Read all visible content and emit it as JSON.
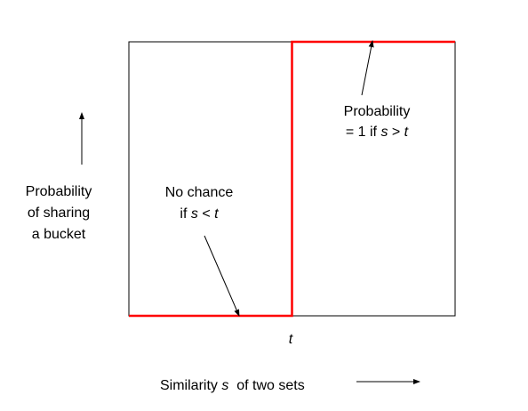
{
  "y_axis_label": [
    "Probability",
    "of sharing",
    "a bucket"
  ],
  "x_axis_label": {
    "prefix": "Similarity ",
    "variable": "s",
    "suffix": "  of two sets"
  },
  "threshold_label": "t",
  "annotation_high": {
    "line1": "Probability",
    "line2_prefix": "= 1 if ",
    "variable_s": "s",
    "operator": " > ",
    "variable_t": "t"
  },
  "annotation_low": {
    "line1": "No chance",
    "line2_prefix": "if ",
    "variable_s": "s",
    "operator": " < ",
    "variable_t": "t"
  },
  "colors": {
    "step_function": "#ff0000",
    "frame": "#000000",
    "text": "#000000"
  },
  "chart_data": {
    "type": "line",
    "x": [
      0,
      0.5,
      0.5,
      1
    ],
    "y": [
      0,
      0,
      1,
      1
    ],
    "xlabel": "Similarity s of two sets",
    "ylabel": "Probability of sharing a bucket",
    "xlim": [
      0,
      1
    ],
    "ylim": [
      0,
      1
    ],
    "grid": false,
    "markers": [
      "t"
    ]
  }
}
